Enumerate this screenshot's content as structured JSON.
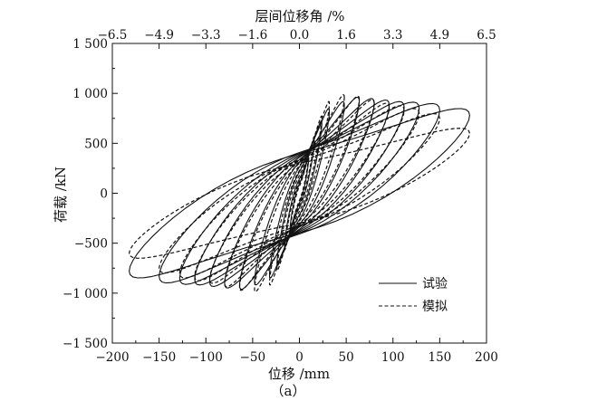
{
  "chart_data": {
    "type": "line",
    "title": "",
    "xlabel": "位移 /mm",
    "ylabel": "荷载 /kN",
    "x2label": "层间位移角 /%",
    "caption": "（a）",
    "xlim": [
      -200,
      200
    ],
    "ylim": [
      -1500,
      1500
    ],
    "xticks": [
      -200,
      -150,
      -100,
      -50,
      0,
      50,
      100,
      150,
      200
    ],
    "yticks": [
      -1500,
      -1000,
      -500,
      0,
      500,
      1000,
      1500
    ],
    "xtick_labels": [
      "−200",
      "−150",
      "−100",
      "−50",
      "0",
      "50",
      "100",
      "150",
      "200"
    ],
    "ytick_labels": [
      "−1 500",
      "−1 000",
      "−500",
      "0",
      "500",
      "1 000",
      "1 500"
    ],
    "x2ticks": [
      -6.5,
      -4.9,
      -3.3,
      -1.6,
      0.0,
      1.6,
      3.3,
      4.9,
      6.5
    ],
    "x2tick_labels": [
      "−6.5",
      "−4.9",
      "−3.3",
      "−1.6",
      "0.0",
      "1.6",
      "3.3",
      "4.9",
      "6.5"
    ],
    "grid": false,
    "legend_position": "bottom-right",
    "series": [
      {
        "name": "试验",
        "style": "solid",
        "color": "#111111",
        "cycles": [
          {
            "d": 10,
            "f": 350,
            "r": 80
          },
          {
            "d": 16,
            "f": 520,
            "r": 120
          },
          {
            "d": 24,
            "f": 700,
            "r": 180
          },
          {
            "d": 32,
            "f": 820,
            "r": 220
          },
          {
            "d": 48,
            "f": 880,
            "r": 260
          },
          {
            "d": 64,
            "f": 920,
            "r": 280
          },
          {
            "d": 80,
            "f": 900,
            "r": 300
          },
          {
            "d": 96,
            "f": 880,
            "r": 310
          },
          {
            "d": 112,
            "f": 860,
            "r": 320
          },
          {
            "d": 128,
            "f": 850,
            "r": 330
          },
          {
            "d": 150,
            "f": 830,
            "r": 340
          },
          {
            "d": 182,
            "f": 780,
            "r": 330
          }
        ]
      },
      {
        "name": "模拟",
        "style": "dashed",
        "color": "#111111",
        "cycles": [
          {
            "d": 10,
            "f": 380,
            "r": 60
          },
          {
            "d": 16,
            "f": 560,
            "r": 100
          },
          {
            "d": 24,
            "f": 760,
            "r": 150
          },
          {
            "d": 32,
            "f": 900,
            "r": 190
          },
          {
            "d": 48,
            "f": 960,
            "r": 230
          },
          {
            "d": 64,
            "f": 940,
            "r": 250
          },
          {
            "d": 80,
            "f": 900,
            "r": 260
          },
          {
            "d": 96,
            "f": 860,
            "r": 270
          },
          {
            "d": 112,
            "f": 830,
            "r": 280
          },
          {
            "d": 128,
            "f": 800,
            "r": 280
          },
          {
            "d": 150,
            "f": 750,
            "r": 270
          },
          {
            "d": 182,
            "f": 600,
            "r": 250
          }
        ]
      }
    ]
  }
}
